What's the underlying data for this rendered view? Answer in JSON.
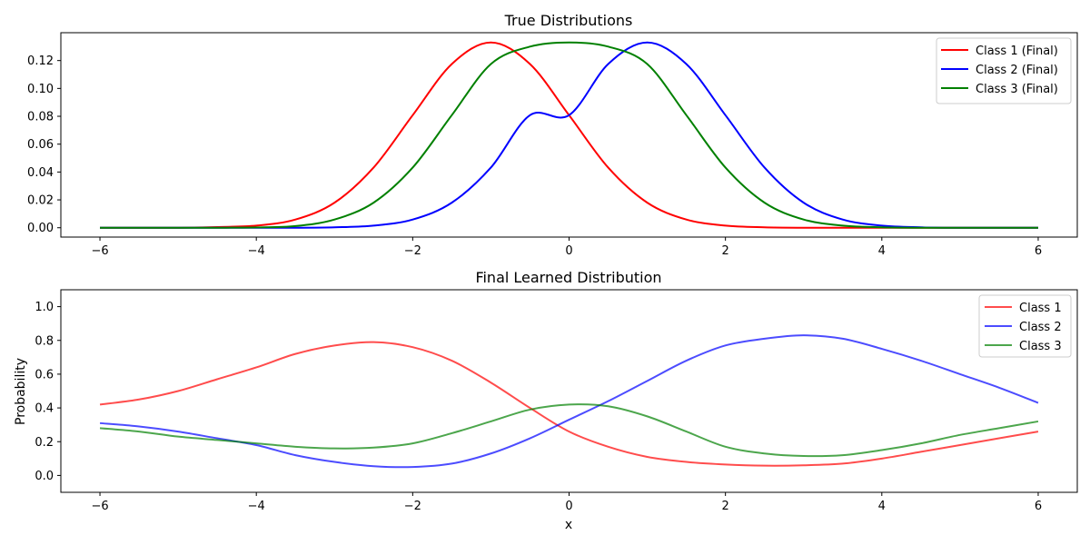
{
  "chart_data": [
    {
      "type": "line",
      "title": "True Distributions",
      "xlabel": "",
      "ylabel": "",
      "xlim": [
        -6.5,
        6.5
      ],
      "ylim": [
        -0.0067,
        0.14
      ],
      "xticks": [
        -6,
        -4,
        -2,
        0,
        2,
        4,
        6
      ],
      "xtick_labels": [
        "−6",
        "−4",
        "−2",
        "0",
        "2",
        "4",
        "6"
      ],
      "yticks": [
        0.0,
        0.02,
        0.04,
        0.06,
        0.08,
        0.1,
        0.12
      ],
      "ytick_labels": [
        "0.00",
        "0.02",
        "0.04",
        "0.06",
        "0.08",
        "0.10",
        "0.12"
      ],
      "grid": false,
      "legend_position": "top-right",
      "x": [
        -6,
        -5.5,
        -5,
        -4.5,
        -4,
        -3.5,
        -3,
        -2.5,
        -2,
        -1.5,
        -1,
        -0.5,
        0,
        0.5,
        1,
        1.5,
        2,
        2.5,
        3,
        3.5,
        4,
        4.5,
        5,
        5.5,
        6
      ],
      "series": [
        {
          "name": "Class 1 (Final)",
          "color": "#ff0000",
          "opacity": 1,
          "values": [
            0.0,
            0.0,
            0.0,
            0.0005,
            0.0015,
            0.0059,
            0.018,
            0.0432,
            0.0808,
            0.1175,
            0.133,
            0.1175,
            0.0808,
            0.0432,
            0.018,
            0.0059,
            0.0015,
            0.0003,
            0.0,
            0.0,
            0.0,
            0.0,
            0.0,
            0.0,
            0.0
          ]
        },
        {
          "name": "Class 2 (Final)",
          "color": "#0000ff",
          "opacity": 1,
          "values": [
            0.0,
            0.0,
            0.0,
            0.0,
            0.0,
            0.0,
            0.0003,
            0.0015,
            0.0059,
            0.018,
            0.0432,
            0.0808,
            0.0808,
            0.1175,
            0.133,
            0.1175,
            0.0808,
            0.0432,
            0.018,
            0.0059,
            0.0015,
            0.0003,
            0.0,
            0.0,
            0.0
          ]
        },
        {
          "name": "Class 3 (Final)",
          "color": "#008000",
          "opacity": 1,
          "values": [
            0.0,
            0.0,
            0.0,
            0.0,
            0.0002,
            0.0012,
            0.0059,
            0.018,
            0.0432,
            0.0808,
            0.1175,
            0.13,
            0.133,
            0.13,
            0.1175,
            0.0808,
            0.0432,
            0.018,
            0.0059,
            0.0015,
            0.0003,
            0.0,
            0.0,
            0.0,
            0.0
          ]
        }
      ]
    },
    {
      "type": "line",
      "title": "Final Learned Distribution",
      "xlabel": "x",
      "ylabel": "Probability",
      "xlim": [
        -6.5,
        6.5
      ],
      "ylim": [
        -0.1,
        1.1
      ],
      "xticks": [
        -6,
        -4,
        -2,
        0,
        2,
        4,
        6
      ],
      "xtick_labels": [
        "−6",
        "−4",
        "−2",
        "0",
        "2",
        "4",
        "6"
      ],
      "yticks": [
        0.0,
        0.2,
        0.4,
        0.6,
        0.8,
        1.0
      ],
      "ytick_labels": [
        "0.0",
        "0.2",
        "0.4",
        "0.6",
        "0.8",
        "1.0"
      ],
      "grid": false,
      "legend_position": "top-right",
      "x": [
        -6,
        -5.5,
        -5,
        -4.5,
        -4,
        -3.5,
        -3,
        -2.5,
        -2,
        -1.5,
        -1,
        -0.5,
        0,
        0.5,
        1,
        1.5,
        2,
        2.5,
        3,
        3.5,
        4,
        4.5,
        5,
        5.5,
        6
      ],
      "series": [
        {
          "name": "Class 1",
          "color": "#ff0000",
          "opacity": 0.7,
          "values": [
            0.42,
            0.45,
            0.5,
            0.57,
            0.64,
            0.72,
            0.77,
            0.79,
            0.76,
            0.68,
            0.55,
            0.4,
            0.26,
            0.17,
            0.11,
            0.08,
            0.065,
            0.058,
            0.06,
            0.07,
            0.1,
            0.14,
            0.18,
            0.22,
            0.26
          ]
        },
        {
          "name": "Class 2",
          "color": "#0000ff",
          "opacity": 0.7,
          "values": [
            0.31,
            0.29,
            0.26,
            0.22,
            0.18,
            0.12,
            0.08,
            0.055,
            0.05,
            0.07,
            0.13,
            0.22,
            0.33,
            0.44,
            0.56,
            0.68,
            0.77,
            0.81,
            0.83,
            0.81,
            0.75,
            0.68,
            0.6,
            0.52,
            0.43
          ]
        },
        {
          "name": "Class 3",
          "color": "#008000",
          "opacity": 0.7,
          "values": [
            0.28,
            0.26,
            0.23,
            0.21,
            0.19,
            0.17,
            0.16,
            0.165,
            0.19,
            0.25,
            0.32,
            0.39,
            0.42,
            0.41,
            0.35,
            0.26,
            0.17,
            0.13,
            0.115,
            0.12,
            0.15,
            0.19,
            0.24,
            0.28,
            0.32
          ]
        }
      ]
    }
  ]
}
